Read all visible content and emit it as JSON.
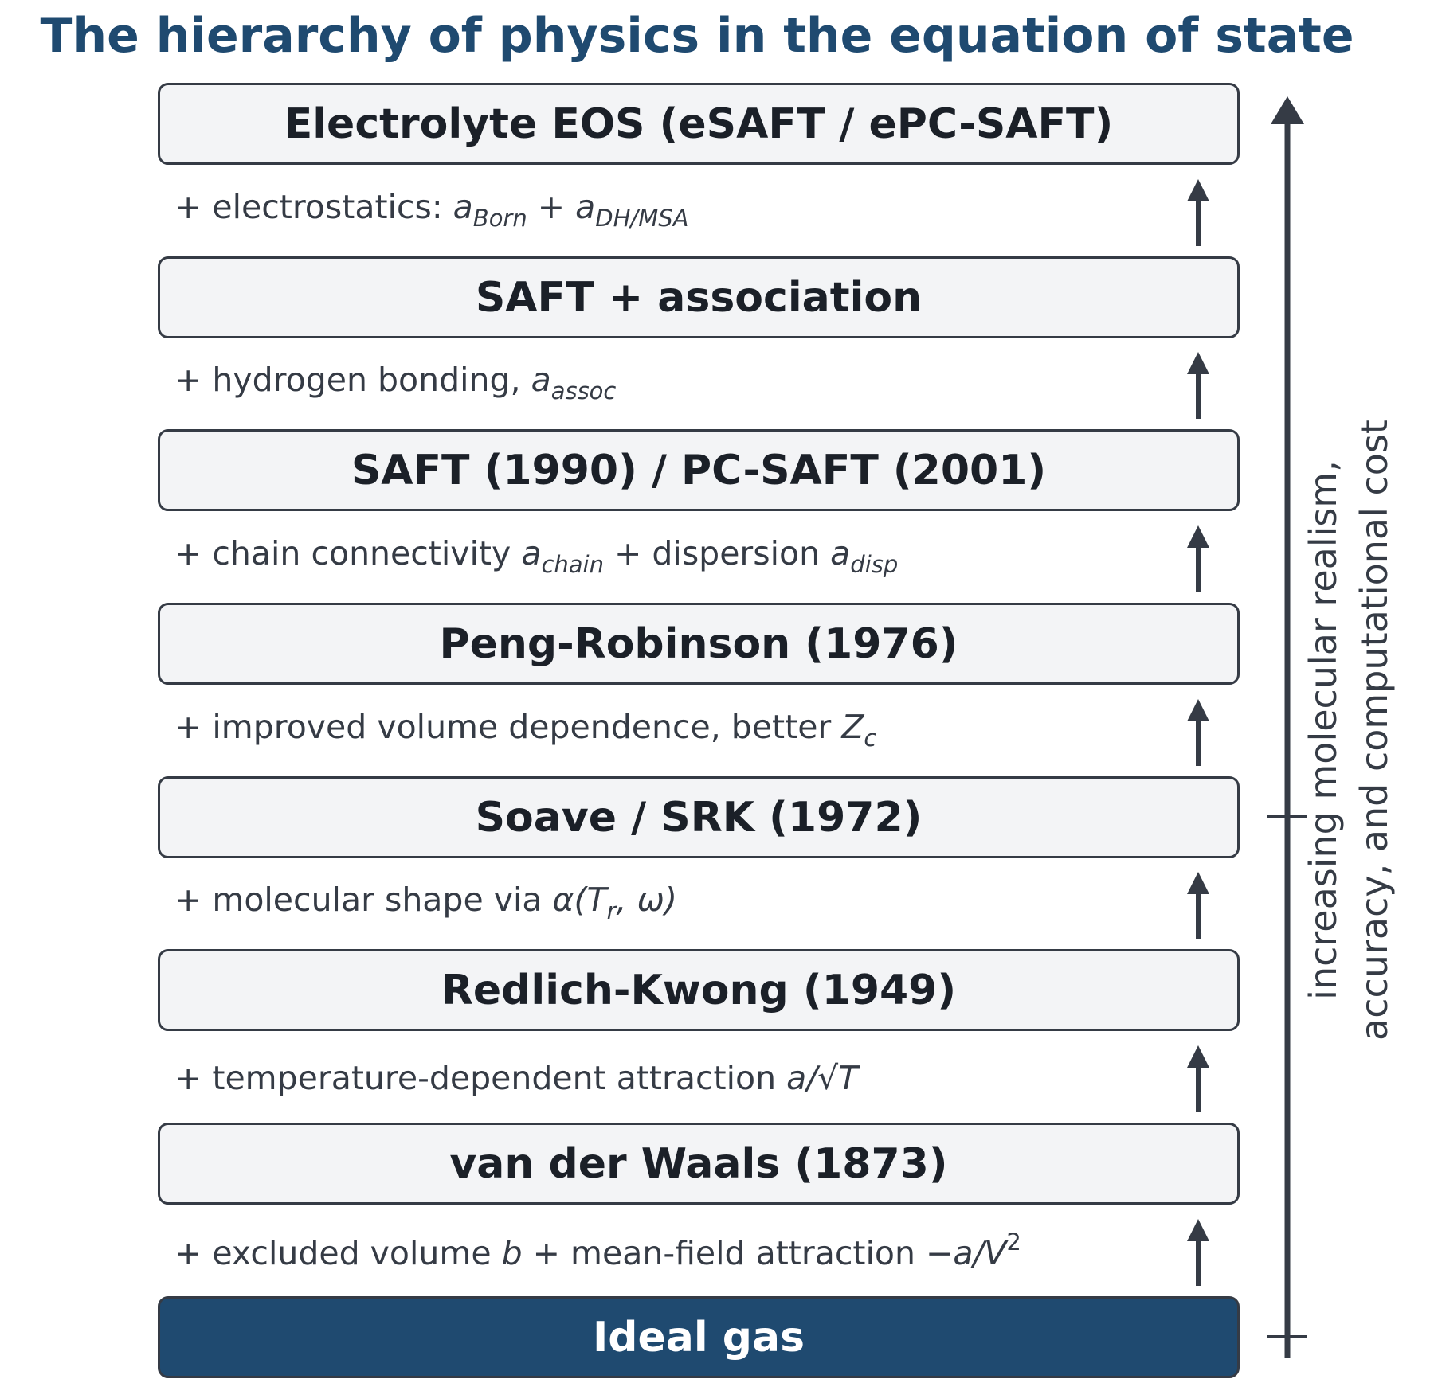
{
  "title": "The hierarchy of physics in the equation of state",
  "levels": [
    "Electrolyte EOS (eSAFT / ePC-SAFT)",
    "SAFT + association",
    "SAFT (1990) / PC-SAFT (2001)",
    "Peng-Robinson (1976)",
    "Soave / SRK (1972)",
    "Redlich-Kwong (1949)",
    "van der Waals (1873)",
    "Ideal gas"
  ],
  "steps": [
    [
      "+ electrostatics: ",
      "a",
      "Born",
      " + ",
      "a",
      "DH/MSA"
    ],
    [
      "+ hydrogen bonding, ",
      "a",
      "assoc"
    ],
    [
      "+ chain connectivity ",
      "a",
      "chain",
      " + dispersion ",
      "a",
      "disp"
    ],
    [
      "+ improved volume dependence, better ",
      "Z",
      "c"
    ],
    [
      "+ molecular shape via ",
      "α(T",
      "r",
      ", ω)"
    ],
    [
      "+ temperature-dependent attraction ",
      "a/√T"
    ],
    [
      "+ excluded volume ",
      "b",
      " + mean-field attraction ",
      "−a/V",
      "2"
    ]
  ],
  "axis_label": [
    "increasing molecular realism,",
    "accuracy, and computational cost"
  ]
}
